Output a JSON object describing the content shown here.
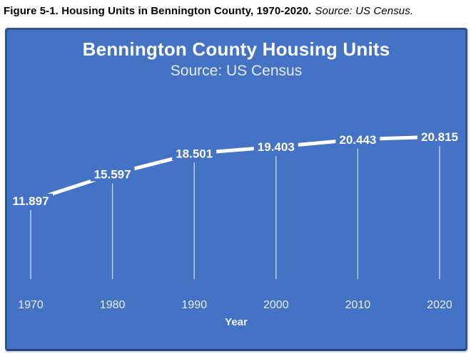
{
  "caption": {
    "main": "Figure 5-1. Housing Units in Bennington County, 1970-2020.",
    "source": "Source: US Census."
  },
  "chart": {
    "title": "Bennington County Housing Units",
    "subtitle": "Source: US Census",
    "xlabel": "Year"
  },
  "chart_data": {
    "type": "line",
    "title": "Bennington County Housing Units",
    "subtitle": "Source: US Census",
    "xlabel": "Year",
    "ylabel": "",
    "categories": [
      "1970",
      "1980",
      "1990",
      "2000",
      "2010",
      "2020"
    ],
    "values": [
      11897,
      15597,
      18501,
      19403,
      20443,
      20815
    ],
    "point_labels": [
      "11.897",
      "15.597",
      "18.501",
      "19.403",
      "20.443",
      "20.815"
    ],
    "series_name": "Housing Units",
    "legend": false,
    "grid": false,
    "drop_lines": true,
    "ylim": [
      11897,
      20815
    ]
  },
  "colors": {
    "chart_background": "#4472c4",
    "chart_border": "#2f5597",
    "line": "#ffffff",
    "data_label_text": "#ffffff",
    "tick_label_text": "#e8eef8",
    "drop_line": "rgba(255,255,255,0.75)",
    "caption_text": "#000000"
  }
}
